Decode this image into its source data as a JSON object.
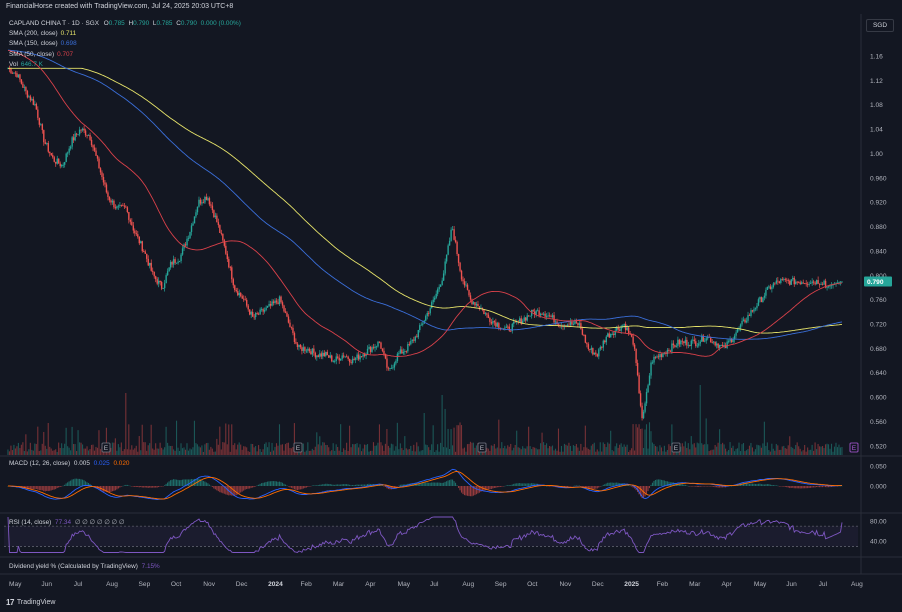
{
  "header": {
    "text": "FinancialHorse created with TradingView.com, Jul 24, 2025 20:03 UTC+8"
  },
  "currency": "SGD",
  "legend": {
    "symbol": "CAPLAND CHINA T · 1D · SGX",
    "ohlc": [
      {
        "k": "O",
        "v": "0.785"
      },
      {
        "k": "H",
        "v": "0.790"
      },
      {
        "k": "L",
        "v": "0.785"
      },
      {
        "k": "C",
        "v": "0.790"
      }
    ],
    "change": "0.000 (0.00%)",
    "sma200": {
      "label": "SMA (200, close)",
      "value": "0.711",
      "color": "#e6e36a"
    },
    "sma150": {
      "label": "SMA (150, close)",
      "value": "0.698",
      "color": "#3a6ed8"
    },
    "sma50": {
      "label": "SMA (50, close)",
      "value": "0.707",
      "color": "#d9414a"
    },
    "vol": {
      "label": "Vol",
      "value": "646.7 K",
      "color": "#26a69a"
    }
  },
  "macd_legend": {
    "label": "MACD (12, 26, close)",
    "v1": "0.005",
    "v2": "0.025",
    "v3": "0.020"
  },
  "rsi_legend": {
    "label": "RSI (14, close)",
    "v1": "77.34",
    "rest": "∅ ∅ ∅ ∅ ∅ ∅ ∅"
  },
  "div_legend": {
    "label": "Dividend yield % (Calculated by TradingView)",
    "value": "7.15%"
  },
  "footer": {
    "logo": "17",
    "brand": "TradingView"
  },
  "colors": {
    "bg": "#131722",
    "up": "#26a69a",
    "down": "#ef5350",
    "grid": "#1e222d",
    "macd": "#2962ff",
    "signal": "#ff6d00",
    "rsi": "#7e57c2",
    "price_badge": "#26a69a"
  },
  "chart_data": [
    {
      "type": "line",
      "title": "CAPLAND CHINA T · 1D · SGX",
      "y_axis_ticks": [
        "1.16",
        "1.12",
        "1.08",
        "1.04",
        "1.00",
        "0.960",
        "0.920",
        "0.880",
        "0.840",
        "0.800",
        "0.760",
        "0.720",
        "0.680",
        "0.640",
        "0.600",
        "0.560",
        "0.520"
      ],
      "x_axis_ticks": [
        "May",
        "Jun",
        "Jul",
        "Aug",
        "Sep",
        "Oct",
        "Nov",
        "Dec",
        "2024",
        "Feb",
        "Mar",
        "Apr",
        "May",
        "Jul",
        "Aug",
        "Sep",
        "Oct",
        "Nov",
        "Dec",
        "2025",
        "Feb",
        "Mar",
        "Apr",
        "May",
        "Jun",
        "Jul",
        "Aug"
      ],
      "last_price_label": "0.790",
      "ylim": [
        0.51,
        1.17
      ],
      "series": [
        {
          "name": "Close",
          "x": [
            0,
            6,
            12,
            18,
            24,
            30,
            36,
            42,
            48,
            54,
            60,
            66,
            72,
            78,
            84,
            90,
            96,
            102,
            108,
            114,
            120,
            126,
            132,
            138,
            144,
            150,
            156,
            162,
            168,
            174,
            180,
            186,
            192,
            198,
            204,
            210,
            216,
            222,
            228,
            234,
            240,
            246,
            252,
            258,
            264,
            270,
            276,
            282,
            288,
            294,
            300,
            306,
            312,
            318,
            324,
            330,
            336,
            342,
            348,
            354,
            360,
            366,
            372,
            378,
            384,
            390,
            396,
            402,
            408,
            414,
            420,
            426,
            432,
            438,
            444,
            450,
            456,
            462,
            468,
            474,
            480,
            486,
            492,
            498,
            504,
            510,
            516,
            522,
            528,
            534,
            540,
            546,
            552
          ],
          "values": [
            1.14,
            1.13,
            1.1,
            1.08,
            1.02,
            0.99,
            0.98,
            1.02,
            1.04,
            1.03,
            0.98,
            0.93,
            0.91,
            0.91,
            0.87,
            0.84,
            0.8,
            0.78,
            0.82,
            0.83,
            0.87,
            0.92,
            0.93,
            0.89,
            0.84,
            0.78,
            0.76,
            0.73,
            0.74,
            0.75,
            0.76,
            0.72,
            0.68,
            0.68,
            0.67,
            0.67,
            0.66,
            0.67,
            0.66,
            0.67,
            0.68,
            0.69,
            0.64,
            0.67,
            0.68,
            0.7,
            0.73,
            0.76,
            0.8,
            0.88,
            0.8,
            0.76,
            0.75,
            0.73,
            0.72,
            0.71,
            0.72,
            0.73,
            0.74,
            0.74,
            0.73,
            0.72,
            0.72,
            0.72,
            0.68,
            0.67,
            0.7,
            0.71,
            0.72,
            0.69,
            0.56,
            0.66,
            0.67,
            0.68,
            0.69,
            0.69,
            0.69,
            0.7,
            0.69,
            0.68,
            0.7,
            0.72,
            0.74,
            0.76,
            0.78,
            0.79,
            0.79,
            0.79,
            0.79,
            0.79,
            0.79,
            0.79,
            0.79
          ]
        }
      ]
    },
    {
      "type": "line",
      "title": "MACD (12, 26, close)",
      "ylim": [
        -0.06,
        0.06
      ],
      "y_axis_ticks": [
        "0.050",
        "0.000"
      ]
    },
    {
      "type": "line",
      "title": "RSI (14, close)",
      "ylim": [
        15,
        90
      ],
      "y_axis_ticks": [
        "80.00",
        "40.00"
      ]
    }
  ]
}
